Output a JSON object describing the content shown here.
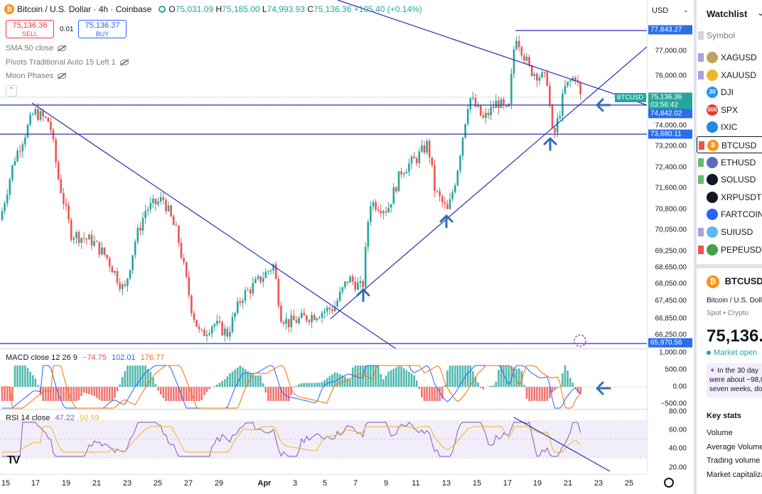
{
  "header": {
    "symbol_title": "Bitcoin / U.S. Dollar · 4h · Coinbase",
    "open_label": "O",
    "open": "75,031.09",
    "high_label": "H",
    "high": "75,185.00",
    "low_label": "L",
    "low": "74,993.93",
    "close_label": "C",
    "close": "75,136.36",
    "change": "+105.40 (+0.14%)"
  },
  "trade": {
    "sell_price": "75,136.36",
    "sell_label": "SELL",
    "spread": "0.01",
    "buy_price": "75,136.37",
    "buy_label": "BUY"
  },
  "indicators": [
    {
      "label": "SMA 50 close"
    },
    {
      "label": "Pivots Traditional Auto 15 Left 1"
    },
    {
      "label": "Moon Phases"
    }
  ],
  "price_axis": {
    "currency": "USD",
    "ticks": [
      "77,000.00",
      "76,000.00",
      "74,000.00",
      "73,200.00",
      "72,400.00",
      "71,600.00",
      "70,800.00",
      "70,050.00",
      "69,250.00",
      "68,650.00",
      "68,050.00",
      "67,450.00",
      "66,850.00",
      "66,250.00"
    ],
    "tags": {
      "high_line": "77,843.27",
      "symbol": "BTCUSD",
      "last_price": "75,136.36",
      "countdown": "03:56:42",
      "line_1": "74,842.02",
      "line_2": "73,680.11",
      "line_3": "65,970.56"
    }
  },
  "macd": {
    "legend_name": "MACD close 12 26 9",
    "hist": "−74.75",
    "macd": "102.01",
    "signal": "176.77",
    "ticks": [
      "1,000.00",
      "500.00",
      "0.00",
      "−500.00"
    ]
  },
  "rsi": {
    "legend_name": "RSI 14 close",
    "rsi": "47.22",
    "ma": "50.59",
    "ticks": [
      "80.00",
      "60.00",
      "40.00",
      "20.00"
    ]
  },
  "time_axis": [
    "15",
    "17",
    "19",
    "21",
    "23",
    "25",
    "27",
    "29",
    "Apr",
    "3",
    "5",
    "7",
    "9",
    "11",
    "13",
    "15",
    "17",
    "19",
    "21",
    "23",
    "25"
  ],
  "colors": {
    "up": "#26a69a",
    "down": "#ef5350",
    "trendline": "#2a2eb8",
    "hline": "#2a2eb8",
    "arrow": "#2f6fb6",
    "rsi_line": "#7e57c2",
    "rsi_ma": "#f0b429",
    "macd_line": "#2962ff",
    "signal_line": "#ff6d00"
  },
  "watchlist": {
    "title": "Watchlist",
    "column": "Symbol",
    "items": [
      {
        "symbol": "XAGUSD",
        "icon_text": "",
        "icon_color": "#c0a060",
        "flag": "#b39ddb"
      },
      {
        "symbol": "XAUUSD",
        "icon_text": "",
        "icon_color": "#f0b429",
        "flag": "#b39ddb"
      },
      {
        "symbol": "DJI",
        "icon_text": "30",
        "icon_color": "#2196f3",
        "flag": ""
      },
      {
        "symbol": "SPX",
        "icon_text": "500",
        "icon_color": "#e53935",
        "flag": ""
      },
      {
        "symbol": "IXIC",
        "icon_text": "",
        "icon_color": "#1e88e5",
        "flag": ""
      },
      {
        "symbol": "BTCUSD",
        "icon_text": "₿",
        "icon_color": "#f7931a",
        "flag": "#ef5350"
      },
      {
        "symbol": "ETHUSD",
        "icon_text": "",
        "icon_color": "#5c6bc0",
        "flag": "#66bb6a"
      },
      {
        "symbol": "SOLUSD",
        "icon_text": "",
        "icon_color": "#131722",
        "flag": "#66bb6a"
      },
      {
        "symbol": "XRPUSDT",
        "icon_text": "",
        "icon_color": "#131722",
        "flag": ""
      },
      {
        "symbol": "FARTCOINUSDT",
        "icon_text": "",
        "icon_color": "#2962ff",
        "flag": ""
      },
      {
        "symbol": "SUIUSD",
        "icon_text": "",
        "icon_color": "#64b5f6",
        "flag": "#b39ddb"
      },
      {
        "symbol": "PEPEUSDT",
        "icon_text": "",
        "icon_color": "#43a047",
        "flag": "#ef5350"
      }
    ]
  },
  "details": {
    "symbol": "BTCUSD",
    "name": "Bitcoin / U.S. Dollar",
    "type": "Spot • Crypto",
    "price": "75,136.",
    "status": "Market open",
    "news_line1": "In the 30 day",
    "news_line2": "were about −98,0",
    "news_line3": "seven weeks, do",
    "key_stats": "Key stats",
    "stats": [
      "Volume",
      "Average Volume",
      "Trading volume 2",
      "Market capitaliza"
    ]
  }
}
